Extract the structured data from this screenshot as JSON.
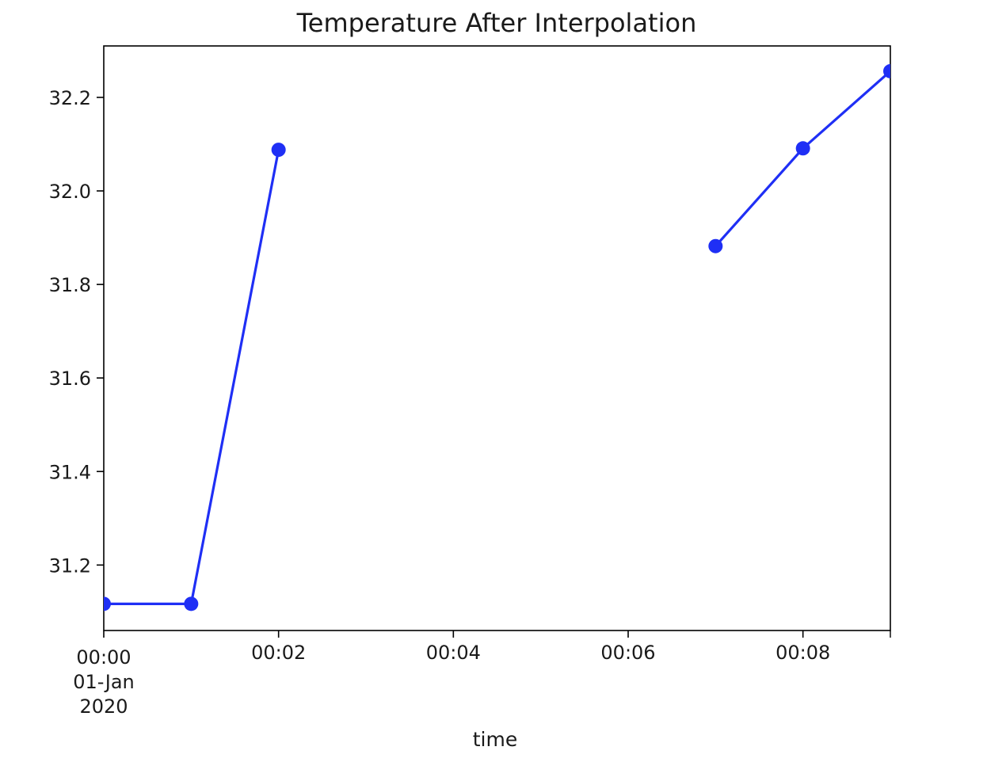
{
  "chart_data": {
    "type": "line",
    "title": "Temperature After Interpolation",
    "xlabel": "time",
    "ylabel": "",
    "x": [
      "00:00",
      "00:01",
      "00:02",
      "00:03",
      "00:04",
      "00:05",
      "00:06",
      "00:07",
      "00:08",
      "00:09"
    ],
    "series": [
      {
        "values": [
          31.117,
          31.117,
          32.088,
          null,
          null,
          null,
          null,
          31.882,
          32.091,
          32.256
        ],
        "color": "#1f2ff5",
        "marker": "circle"
      }
    ],
    "xlim": [
      "00:00",
      "00:09"
    ],
    "ylim": [
      31.06,
      32.31
    ],
    "x_ticks": [
      {
        "at": "00:00",
        "lines": [
          "00:00",
          "01-Jan",
          "2020"
        ]
      },
      {
        "at": "00:02",
        "lines": [
          "00:02"
        ]
      },
      {
        "at": "00:04",
        "lines": [
          "00:04"
        ]
      },
      {
        "at": "00:06",
        "lines": [
          "00:06"
        ]
      },
      {
        "at": "00:08",
        "lines": [
          "00:08"
        ]
      }
    ],
    "y_ticks": [
      31.2,
      31.4,
      31.6,
      31.8,
      32.0,
      32.2
    ],
    "grid": false,
    "legend": "none"
  }
}
